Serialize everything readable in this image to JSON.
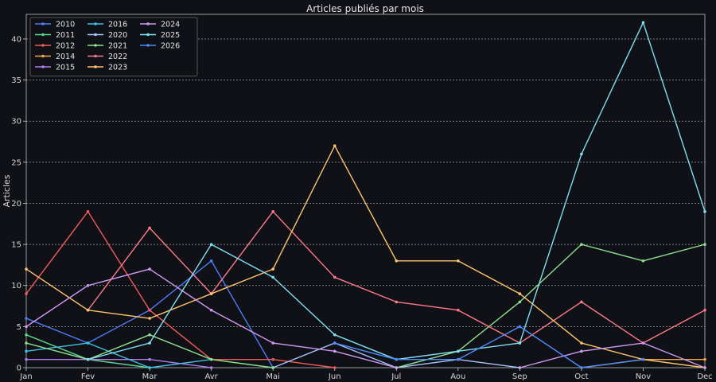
{
  "chart_data": {
    "type": "line",
    "title": "Articles publiés par mois",
    "xlabel": "",
    "ylabel": "Articles",
    "categories": [
      "Jan",
      "Fev",
      "Mar",
      "Avr",
      "Mai",
      "Jun",
      "Jul",
      "Aou",
      "Sep",
      "Oct",
      "Nov",
      "Dec"
    ],
    "ylim": [
      0,
      43
    ],
    "yticks": [
      0,
      5,
      10,
      15,
      20,
      25,
      30,
      35,
      40
    ],
    "grid": "horizontal",
    "legend_position": "top-left",
    "series": [
      {
        "name": "2010",
        "color": "#4f7bf7",
        "values": [
          6,
          3,
          7,
          13,
          0,
          null,
          null,
          null,
          null,
          null,
          null,
          null
        ]
      },
      {
        "name": "2011",
        "color": "#5fd38a",
        "values": [
          4,
          1,
          0,
          null,
          null,
          null,
          null,
          null,
          null,
          null,
          null,
          null
        ]
      },
      {
        "name": "2012",
        "color": "#f05a5a",
        "values": [
          9,
          19,
          7,
          1,
          1,
          0,
          null,
          null,
          null,
          null,
          null,
          null
        ]
      },
      {
        "name": "2014",
        "color": "#f5a742",
        "values": [
          null,
          null,
          null,
          null,
          null,
          null,
          null,
          null,
          null,
          0,
          1,
          1
        ]
      },
      {
        "name": "2015",
        "color": "#b07cf0",
        "values": [
          1,
          1,
          1,
          0,
          null,
          null,
          null,
          null,
          null,
          null,
          null,
          null
        ]
      },
      {
        "name": "2016",
        "color": "#3fc1e0",
        "values": [
          2,
          3,
          0,
          1,
          null,
          null,
          null,
          null,
          null,
          null,
          null,
          null
        ]
      },
      {
        "name": "2020",
        "color": "#a9c4ff",
        "values": [
          null,
          null,
          null,
          null,
          0,
          3,
          0,
          1,
          0,
          null,
          null,
          null
        ]
      },
      {
        "name": "2021",
        "color": "#8fe08f",
        "values": [
          3,
          1,
          4,
          1,
          0,
          null,
          0,
          2,
          8,
          15,
          13,
          15
        ]
      },
      {
        "name": "2022",
        "color": "#ff7a8a",
        "values": [
          null,
          7,
          17,
          9,
          19,
          11,
          8,
          7,
          3,
          8,
          3,
          7
        ]
      },
      {
        "name": "2023",
        "color": "#ffc46b",
        "values": [
          12,
          7,
          6,
          9,
          12,
          27,
          13,
          13,
          9,
          3,
          1,
          0
        ]
      },
      {
        "name": "2024",
        "color": "#d09af2",
        "values": [
          5,
          10,
          12,
          7,
          3,
          2,
          0,
          null,
          0,
          2,
          3,
          0
        ]
      },
      {
        "name": "2025",
        "color": "#7fe0f0",
        "values": [
          null,
          1,
          3,
          15,
          11,
          4,
          1,
          2,
          3,
          26,
          42,
          19
        ]
      },
      {
        "name": "2026",
        "color": "#4d8bff",
        "values": [
          null,
          null,
          null,
          null,
          null,
          3,
          1,
          1,
          5,
          0,
          1,
          null
        ]
      }
    ]
  }
}
